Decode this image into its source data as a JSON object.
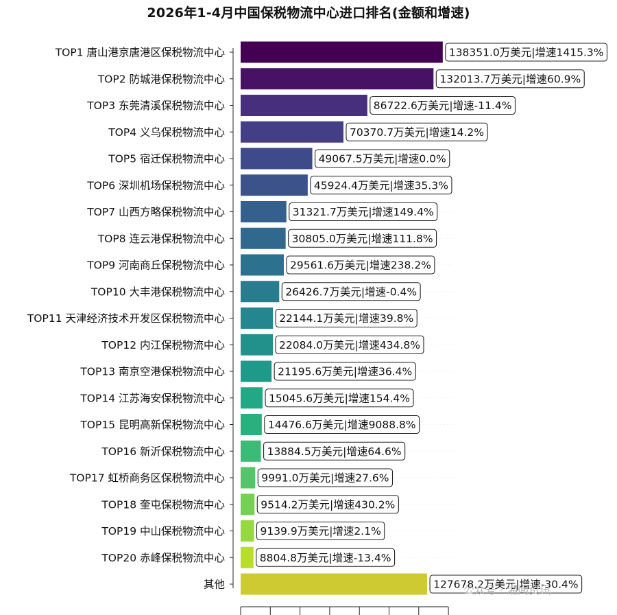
{
  "chart_data": {
    "type": "bar",
    "orientation": "horizontal",
    "title": "2026年1-4月中国保税物流中心进口排名(金额和增速)",
    "categories": [
      "TOP1  唐山港京唐港区保税物流中心",
      "TOP2  防城港保税物流中心",
      "TOP3  东莞清溪保税物流中心",
      "TOP4  义乌保税物流中心",
      "TOP5  宿迁保税物流中心",
      "TOP6  深圳机场保税物流中心",
      "TOP7  山西方略保税物流中心",
      "TOP8  连云港保税物流中心",
      "TOP9  河南商丘保税物流中心",
      "TOP10  大丰港保税物流中心",
      "TOP11  天津经济技术开发区保税物流中心",
      "TOP12  内江保税物流中心",
      "TOP13  南京空港保税物流中心",
      "TOP14  江苏海安保税物流中心",
      "TOP15  昆明高新保税物流中心",
      "TOP16  新沂保税物流中心",
      "TOP17  虹桥商务区保税物流中心",
      "TOP18  奎屯保税物流中心",
      "TOP19  中山保税物流中心",
      "TOP20  赤峰保税物流中心",
      "其他"
    ],
    "values": [
      138351.0,
      132013.7,
      86722.6,
      70370.7,
      49067.5,
      45924.4,
      31321.7,
      30805.0,
      29561.6,
      26426.7,
      22144.1,
      22084.0,
      21195.6,
      15045.6,
      14476.6,
      13884.5,
      9991.0,
      9514.2,
      9139.9,
      8804.8,
      127678.2
    ],
    "growth": [
      "1415.3%",
      "60.9%",
      "-11.4%",
      "14.2%",
      "0.0%",
      "35.3%",
      "149.4%",
      "111.8%",
      "238.2%",
      "-0.4%",
      "39.8%",
      "434.8%",
      "36.4%",
      "154.4%",
      "9088.8%",
      "64.6%",
      "27.6%",
      "430.2%",
      "2.1%",
      "-13.4%",
      "-30.4%"
    ],
    "data_labels": [
      "138351.0万美元|增速1415.3%",
      "132013.7万美元|增速60.9%",
      "86722.6万美元|增速-11.4%",
      "70370.7万美元|增速14.2%",
      "49067.5万美元|增速0.0%",
      "45924.4万美元|增速35.3%",
      "31321.7万美元|增速149.4%",
      "30805.0万美元|增速111.8%",
      "29561.6万美元|增速238.2%",
      "26426.7万美元|增速-0.4%",
      "22144.1万美元|增速39.8%",
      "22084.0万美元|增速434.8%",
      "21195.6万美元|增速36.4%",
      "15045.6万美元|增速154.4%",
      "14476.6万美元|增速9088.8%",
      "13884.5万美元|增速64.6%",
      "9991.0万美元|增速27.6%",
      "9514.2万美元|增速430.2%",
      "9139.9万美元|增速2.1%",
      "8804.8万美元|增速-13.4%",
      "127678.2万美元|增速-30.4%"
    ],
    "unit": "万美元",
    "xlim": [
      0,
      145000
    ],
    "colormap": "viridis",
    "colors": [
      "#440154",
      "#471164",
      "#472f7d",
      "#433e85",
      "#3e4a89",
      "#3b528b",
      "#355f8d",
      "#31688e",
      "#2c728e",
      "#287c8e",
      "#24868e",
      "#21918c",
      "#1f9a8a",
      "#22a884",
      "#2ab07f",
      "#3bbb75",
      "#54c568",
      "#75d054",
      "#95d840",
      "#b8de29",
      "#cdcb31"
    ],
    "grid": false
  },
  "watermark": "公众号 · 湘闻资讯"
}
